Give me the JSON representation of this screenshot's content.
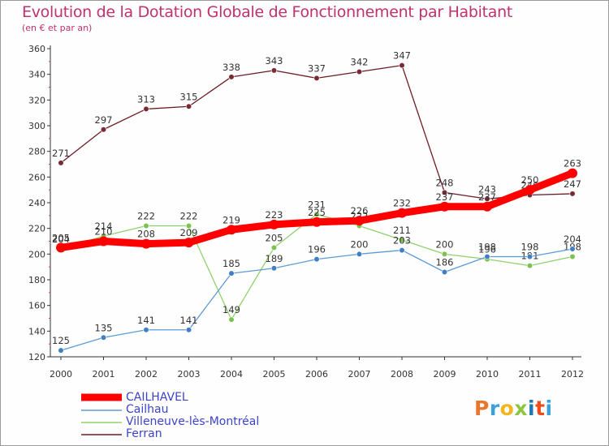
{
  "title": "Evolution de la Dotation Globale de Fonctionnement par Habitant",
  "subtitle": "(en € et par an)",
  "logo": {
    "text": "Proxiti",
    "letter_colors": [
      "#e8762d",
      "#3ba1dc",
      "#f1b51d",
      "#8cc63f",
      "#1f78b4",
      "#e94e1b",
      "#3ba1dc"
    ]
  },
  "chart_data": {
    "type": "line",
    "title": "Evolution de la Dotation Globale de Fonctionnement par Habitant",
    "subtitle": "(en € et par an)",
    "xlabel": "",
    "ylabel": "",
    "x": [
      "2000",
      "2001",
      "2002",
      "2003",
      "2004",
      "2005",
      "2006",
      "2007",
      "2008",
      "2009",
      "2010",
      "2011",
      "2012"
    ],
    "ylim": [
      120,
      360
    ],
    "yticks": [
      120,
      140,
      160,
      180,
      200,
      220,
      240,
      260,
      280,
      300,
      320,
      340,
      360
    ],
    "grid": false,
    "legend_position": "bottom-left",
    "series": [
      {
        "name": "Ferran",
        "color": "#6b1c24",
        "marker": "#7a2a32",
        "weight": "thin",
        "values": [
          271,
          297,
          313,
          315,
          338,
          343,
          337,
          342,
          347,
          248,
          243,
          246,
          247
        ],
        "labels": [
          "271",
          "297",
          "313",
          "315",
          "338",
          "343",
          "337",
          "342",
          "347",
          "248",
          "243",
          "246",
          "247"
        ]
      },
      {
        "name": "Villeneuve-lès-Montréal",
        "color": "#8fd16a",
        "marker": "#7cc24f",
        "weight": "thin",
        "values": [
          204,
          214,
          222,
          222,
          149,
          205,
          231,
          222,
          211,
          200,
          196,
          191,
          198
        ],
        "labels": [
          "204",
          "214",
          "222",
          "222",
          "149",
          "205",
          "231",
          "222",
          "211",
          "200",
          "196",
          "191",
          "198"
        ]
      },
      {
        "name": "Cailhau",
        "color": "#5b9bd5",
        "marker": "#3f7fc2",
        "weight": "thin",
        "values": [
          125,
          135,
          141,
          141,
          185,
          189,
          196,
          200,
          203,
          186,
          198,
          198,
          204
        ],
        "labels": [
          "125",
          "135",
          "141",
          "141",
          "185",
          "189",
          "196",
          "200",
          "203",
          "186",
          "198",
          "198",
          "204"
        ]
      },
      {
        "name": "CAILHAVEL",
        "color": "#ff0000",
        "marker": "#ff0000",
        "weight": "thick",
        "values": [
          205,
          210,
          208,
          209,
          219,
          223,
          225,
          226,
          232,
          237,
          237,
          250,
          263
        ],
        "labels": [
          "205",
          "210",
          "208",
          "209",
          "219",
          "223",
          "225",
          "226",
          "232",
          "237",
          "237",
          "250",
          "263"
        ]
      }
    ],
    "legend": [
      "CAILHAVEL",
      "Cailhau",
      "Villeneuve-lès-Montréal",
      "Ferran"
    ]
  }
}
